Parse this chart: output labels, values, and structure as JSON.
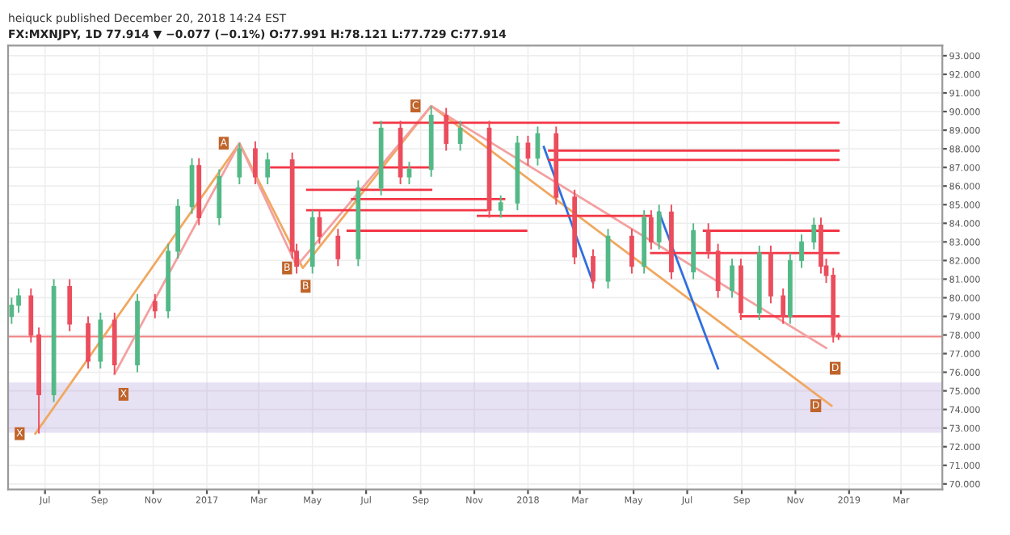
{
  "chart_data": {
    "type": "candlestick",
    "title": "heiquck published December 20, 2018 14:24 EST",
    "subtitle": "FX:MXNJPY, 1D 77.914 ▼ −0.077 (−0.1%) O:77.991 H:78.121 L:77.729 C:77.914",
    "xlim": [
      "2016-05-20",
      "2019-04-17"
    ],
    "ylim": [
      69.7,
      93.55
    ],
    "xticks": [
      {
        "value": "2016-07-01",
        "label": "Jul"
      },
      {
        "value": "2016-09-01",
        "label": "Sep"
      },
      {
        "value": "2016-11-01",
        "label": "Nov"
      },
      {
        "value": "2017-01-01",
        "label": "2017"
      },
      {
        "value": "2017-03-01",
        "label": "Mar"
      },
      {
        "value": "2017-05-01",
        "label": "May"
      },
      {
        "value": "2017-07-01",
        "label": "Jul"
      },
      {
        "value": "2017-09-01",
        "label": "Sep"
      },
      {
        "value": "2017-11-01",
        "label": "Nov"
      },
      {
        "value": "2018-01-01",
        "label": "2018"
      },
      {
        "value": "2018-03-01",
        "label": "Mar"
      },
      {
        "value": "2018-05-01",
        "label": "May"
      },
      {
        "value": "2018-07-01",
        "label": "Jul"
      },
      {
        "value": "2018-09-01",
        "label": "Sep"
      },
      {
        "value": "2018-11-01",
        "label": "Nov"
      },
      {
        "value": "2019-01-01",
        "label": "2019"
      },
      {
        "value": "2019-03-01",
        "label": "Mar"
      }
    ],
    "yticks": [
      {
        "value": 70,
        "label": "70.000"
      },
      {
        "value": 71,
        "label": "71.000"
      },
      {
        "value": 72,
        "label": "72.000"
      },
      {
        "value": 73,
        "label": "73.000"
      },
      {
        "value": 74,
        "label": "74.000"
      },
      {
        "value": 75,
        "label": "75.000"
      },
      {
        "value": 76,
        "label": "76.000"
      },
      {
        "value": 77,
        "label": "77.000"
      },
      {
        "value": 78,
        "label": "78.000"
      },
      {
        "value": 79,
        "label": "79.000"
      },
      {
        "value": 80,
        "label": "80.000"
      },
      {
        "value": 81,
        "label": "81.000"
      },
      {
        "value": 82,
        "label": "82.000"
      },
      {
        "value": 83,
        "label": "83.000"
      },
      {
        "value": 84,
        "label": "84.000"
      },
      {
        "value": 85,
        "label": "85.000"
      },
      {
        "value": 86,
        "label": "86.000"
      },
      {
        "value": 87,
        "label": "87.000"
      },
      {
        "value": 88,
        "label": "88.000"
      },
      {
        "value": 89,
        "label": "89.000"
      },
      {
        "value": 90,
        "label": "90.000"
      },
      {
        "value": 91,
        "label": "91.000"
      },
      {
        "value": 92,
        "label": "92.000"
      },
      {
        "value": 93,
        "label": "93.000"
      }
    ],
    "grid": true,
    "bands": [
      {
        "axis": "y",
        "from": 72.8,
        "to": 75.4,
        "color": "#b39ddb"
      }
    ],
    "ref_lines": [
      {
        "axis": "y",
        "value": 77.914,
        "color": "#f08080"
      }
    ],
    "series": [
      {
        "type": "line",
        "color": "#f0a860",
        "x": [
          "2016-06-20",
          "2017-02-07",
          "2017-04-20",
          "2017-09-13",
          "2018-12-12"
        ],
        "values": [
          72.7,
          88.3,
          81.6,
          90.3,
          74.2
        ]
      },
      {
        "type": "line",
        "color": "#f4a0a0",
        "x": [
          "2016-09-18",
          "2017-02-07",
          "2017-04-13",
          "2017-09-13",
          "2018-12-06"
        ],
        "values": [
          75.9,
          88.3,
          81.7,
          90.3,
          77.3
        ]
      },
      {
        "type": "line",
        "color": "#2f6fe0",
        "x": [
          "2018-01-19",
          "2018-03-16"
        ],
        "values": [
          88.1,
          80.8
        ]
      },
      {
        "type": "line",
        "color": "#2f6fe0",
        "x": [
          "2018-05-30",
          "2018-08-05"
        ],
        "values": [
          84.6,
          76.2
        ]
      },
      {
        "type": "line",
        "color": "#f23645",
        "x": [
          "2017-07-10",
          "2018-12-20"
        ],
        "values": [
          89.4,
          89.4
        ]
      },
      {
        "type": "line",
        "color": "#f23645",
        "x": [
          "2018-01-25",
          "2018-12-20"
        ],
        "values": [
          87.9,
          87.9
        ]
      },
      {
        "type": "line",
        "color": "#f23645",
        "x": [
          "2018-01-25",
          "2018-12-20"
        ],
        "values": [
          87.4,
          87.4
        ]
      },
      {
        "type": "line",
        "color": "#f23645",
        "x": [
          "2017-03-15",
          "2017-09-13"
        ],
        "values": [
          87.0,
          87.0
        ]
      },
      {
        "type": "line",
        "color": "#f23645",
        "x": [
          "2017-04-25",
          "2017-09-13"
        ],
        "values": [
          85.8,
          85.8
        ]
      },
      {
        "type": "line",
        "color": "#f23645",
        "x": [
          "2017-06-15",
          "2017-12-05"
        ],
        "values": [
          85.3,
          85.3
        ]
      },
      {
        "type": "line",
        "color": "#f23645",
        "x": [
          "2017-04-25",
          "2017-11-15"
        ],
        "values": [
          84.7,
          84.7
        ]
      },
      {
        "type": "line",
        "color": "#f23645",
        "x": [
          "2017-06-10",
          "2017-12-30"
        ],
        "values": [
          83.6,
          83.6
        ]
      },
      {
        "type": "line",
        "color": "#f23645",
        "x": [
          "2017-11-05",
          "2018-05-21"
        ],
        "values": [
          84.4,
          84.4
        ]
      },
      {
        "type": "line",
        "color": "#f23645",
        "x": [
          "2018-07-20",
          "2018-12-20"
        ],
        "values": [
          83.6,
          83.6
        ]
      },
      {
        "type": "line",
        "color": "#f23645",
        "x": [
          "2018-05-21",
          "2018-12-20"
        ],
        "values": [
          82.4,
          82.4
        ]
      },
      {
        "type": "line",
        "color": "#f23645",
        "x": [
          "2018-08-31",
          "2018-12-20"
        ],
        "values": [
          79.0,
          79.0
        ]
      },
      {
        "x": [
          "2016-05-24",
          "2016-06-01",
          "2016-06-15",
          "2016-06-24",
          "2016-07-11",
          "2016-07-29",
          "2016-08-19",
          "2016-09-02",
          "2016-09-18",
          "2016-10-14",
          "2016-11-03",
          "2016-11-18",
          "2016-11-29",
          "2016-12-15",
          "2016-12-23",
          "2017-01-15",
          "2017-02-07",
          "2017-02-25",
          "2017-03-11",
          "2017-04-08",
          "2017-04-13",
          "2017-05-01",
          "2017-05-09",
          "2017-05-30",
          "2017-06-22",
          "2017-07-18",
          "2017-08-09",
          "2017-08-19",
          "2017-09-13",
          "2017-09-30",
          "2017-10-16",
          "2017-11-18",
          "2017-12-01",
          "2017-12-20",
          "2018-01-01",
          "2018-01-12",
          "2018-02-02",
          "2018-02-23",
          "2018-03-16",
          "2018-04-02",
          "2018-04-29",
          "2018-05-13",
          "2018-05-21",
          "2018-05-30",
          "2018-06-13",
          "2018-07-08",
          "2018-07-25",
          "2018-08-05",
          "2018-08-21",
          "2018-08-31",
          "2018-09-21",
          "2018-10-04",
          "2018-10-18",
          "2018-10-26",
          "2018-11-08",
          "2018-11-22",
          "2018-11-30",
          "2018-12-06",
          "2018-12-14",
          "2018-12-20"
        ],
        "ohlc": [
          [
            79.0,
            80.0,
            78.6,
            79.6
          ],
          [
            79.6,
            80.5,
            79.2,
            80.1
          ],
          [
            80.1,
            80.5,
            77.6,
            78.0
          ],
          [
            78.0,
            78.4,
            72.7,
            74.8
          ],
          [
            74.8,
            81.0,
            74.4,
            80.6
          ],
          [
            80.6,
            81.0,
            78.2,
            78.6
          ],
          [
            78.6,
            79.0,
            76.2,
            76.6
          ],
          [
            76.6,
            79.2,
            76.2,
            78.8
          ],
          [
            78.8,
            79.2,
            75.9,
            76.4
          ],
          [
            76.4,
            80.2,
            76.0,
            79.8
          ],
          [
            79.8,
            80.2,
            78.9,
            79.3
          ],
          [
            79.3,
            82.9,
            78.9,
            82.5
          ],
          [
            82.5,
            85.3,
            82.1,
            84.9
          ],
          [
            84.9,
            87.5,
            84.5,
            87.1
          ],
          [
            87.1,
            87.5,
            83.9,
            84.3
          ],
          [
            84.3,
            86.9,
            83.9,
            86.5
          ],
          [
            86.5,
            88.3,
            86.1,
            88.0
          ],
          [
            88.0,
            88.4,
            86.1,
            86.5
          ],
          [
            86.5,
            87.8,
            86.1,
            87.4
          ],
          [
            87.4,
            87.8,
            82.1,
            82.5
          ],
          [
            82.5,
            82.9,
            81.3,
            81.7
          ],
          [
            81.7,
            84.7,
            81.3,
            84.3
          ],
          [
            84.3,
            84.7,
            82.9,
            83.3
          ],
          [
            83.3,
            83.7,
            81.7,
            82.1
          ],
          [
            82.1,
            86.3,
            81.7,
            85.9
          ],
          [
            85.9,
            89.5,
            85.5,
            89.1
          ],
          [
            89.1,
            89.5,
            86.1,
            86.5
          ],
          [
            86.5,
            87.3,
            86.1,
            86.9
          ],
          [
            86.9,
            90.3,
            86.5,
            89.8
          ],
          [
            89.8,
            90.2,
            87.9,
            88.3
          ],
          [
            88.3,
            89.5,
            87.9,
            89.1
          ],
          [
            89.1,
            89.5,
            84.3,
            84.7
          ],
          [
            84.7,
            85.5,
            84.3,
            85.1
          ],
          [
            85.1,
            88.7,
            84.7,
            88.3
          ],
          [
            88.3,
            88.7,
            87.1,
            87.5
          ],
          [
            87.5,
            89.2,
            87.1,
            88.8
          ],
          [
            88.8,
            89.2,
            85.0,
            85.4
          ],
          [
            85.4,
            85.8,
            81.8,
            82.2
          ],
          [
            82.2,
            82.6,
            80.5,
            80.9
          ],
          [
            80.9,
            83.7,
            80.5,
            83.3
          ],
          [
            83.3,
            83.7,
            81.3,
            81.7
          ],
          [
            81.7,
            84.7,
            81.3,
            84.3
          ],
          [
            84.3,
            84.7,
            82.6,
            83.0
          ],
          [
            83.0,
            85.0,
            82.6,
            84.6
          ],
          [
            84.6,
            85.0,
            81.0,
            81.4
          ],
          [
            81.4,
            84.0,
            81.0,
            83.6
          ],
          [
            83.6,
            84.0,
            82.1,
            82.5
          ],
          [
            82.5,
            82.9,
            80.0,
            80.4
          ],
          [
            80.4,
            82.1,
            80.0,
            81.7
          ],
          [
            81.7,
            82.1,
            78.8,
            79.2
          ],
          [
            79.2,
            82.8,
            78.8,
            82.4
          ],
          [
            82.4,
            82.8,
            79.7,
            80.1
          ],
          [
            80.1,
            80.5,
            78.6,
            79.0
          ],
          [
            79.0,
            82.4,
            78.6,
            82.0
          ],
          [
            82.0,
            83.4,
            81.6,
            83.0
          ],
          [
            83.0,
            84.3,
            82.6,
            83.9
          ],
          [
            83.9,
            84.3,
            81.3,
            81.7
          ],
          [
            81.7,
            82.1,
            80.8,
            81.2
          ],
          [
            81.2,
            81.6,
            77.6,
            77.991
          ],
          [
            77.991,
            78.121,
            77.729,
            77.914
          ]
        ],
        "colors": [
          "#53b987",
          "#53b987",
          "#eb4d5c",
          "#eb4d5c",
          "#53b987",
          "#eb4d5c",
          "#eb4d5c",
          "#53b987",
          "#eb4d5c",
          "#53b987",
          "#eb4d5c",
          "#53b987",
          "#53b987",
          "#53b987",
          "#eb4d5c",
          "#53b987",
          "#53b987",
          "#eb4d5c",
          "#53b987",
          "#eb4d5c",
          "#eb4d5c",
          "#53b987",
          "#eb4d5c",
          "#eb4d5c",
          "#53b987",
          "#53b987",
          "#eb4d5c",
          "#53b987",
          "#53b987",
          "#eb4d5c",
          "#53b987",
          "#eb4d5c",
          "#53b987",
          "#53b987",
          "#eb4d5c",
          "#53b987",
          "#eb4d5c",
          "#eb4d5c",
          "#eb4d5c",
          "#53b987",
          "#eb4d5c",
          "#53b987",
          "#eb4d5c",
          "#53b987",
          "#eb4d5c",
          "#53b987",
          "#eb4d5c",
          "#eb4d5c",
          "#53b987",
          "#eb4d5c",
          "#53b987",
          "#eb4d5c",
          "#eb4d5c",
          "#53b987",
          "#53b987",
          "#53b987",
          "#eb4d5c",
          "#eb4d5c",
          "#eb4d5c",
          "#eb4d5c"
        ]
      }
    ],
    "annotations": [
      {
        "text": "X",
        "x": "2016-06-20",
        "y": 72.7
      },
      {
        "text": "A",
        "x": "2017-02-07",
        "y": 88.3
      },
      {
        "text": "B",
        "x": "2017-04-20",
        "y": 81.6
      },
      {
        "text": "C",
        "x": "2017-09-13",
        "y": 90.3
      },
      {
        "text": "D",
        "x": "2018-12-12",
        "y": 74.2
      },
      {
        "text": "X",
        "x": "2016-09-18",
        "y": 75.9
      },
      {
        "text": "B",
        "x": "2017-04-13",
        "y": 81.7
      },
      {
        "text": "D",
        "x": "2018-12-06",
        "y": 77.3
      }
    ]
  }
}
